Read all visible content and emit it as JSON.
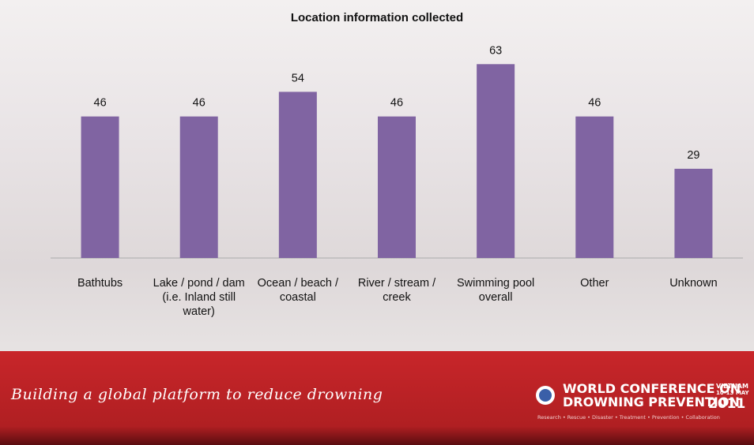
{
  "chart_data": {
    "type": "bar",
    "title": "Location information collected",
    "categories": [
      "Bathtubs",
      "Lake / pond / dam (i.e. Inland still water)",
      "Ocean / beach / coastal",
      "River / stream / creek",
      "Swimming pool overall",
      "Other",
      "Unknown"
    ],
    "values": [
      46,
      46,
      54,
      46,
      63,
      46,
      29
    ],
    "color": "#8064a2"
  },
  "footer": {
    "slogan": "Building a global platform to reduce drowning",
    "logo_line1": "WORLD CONFERENCE ON",
    "logo_line2": "DROWNING PREVENTION",
    "country": "VIETNAM",
    "dates": "10-13 MAY",
    "year": "2011",
    "tagline": "Research • Rescue • Disaster • Treatment • Prevention • Collaboration"
  }
}
